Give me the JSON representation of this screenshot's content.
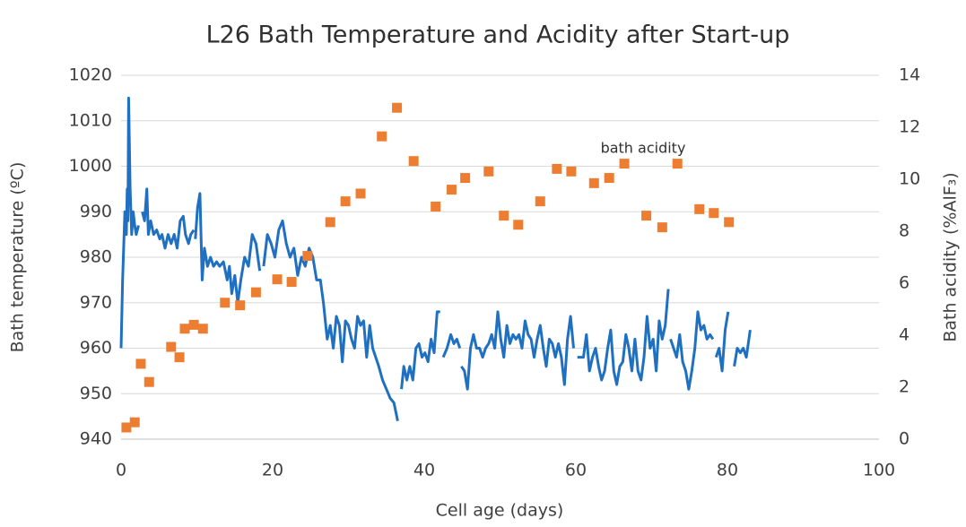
{
  "chart_data": {
    "type": "line",
    "title": "L26 Bath Temperature and Acidity after Start-up",
    "x_label": "Cell age (days)",
    "y_label": "Bath temperature (ºC)",
    "y2_label": "Bath acidity (%AlF₃)",
    "annotation": "bath acidity",
    "xlim": [
      0,
      100
    ],
    "xticks": [
      0,
      20,
      40,
      60,
      80,
      100
    ],
    "ylim": [
      940,
      1020
    ],
    "yticks": [
      940,
      950,
      960,
      970,
      980,
      990,
      1000,
      1010,
      1020
    ],
    "y2lim": [
      0,
      14
    ],
    "y2ticks": [
      0,
      2,
      4,
      6,
      8,
      10,
      12,
      14
    ],
    "grid": true,
    "series": [
      {
        "name": "bath temperature",
        "type": "line",
        "color": "#1f70c1",
        "x": [
          0,
          0.2,
          0.5,
          0.7,
          0.8,
          0.9,
          1.0,
          1.2,
          1.4,
          1.6,
          1.8,
          2.0,
          2.3,
          null,
          2.8,
          3.1,
          3.4,
          3.6,
          3.9,
          4.3,
          4.7,
          5.1,
          5.4,
          5.8,
          6.2,
          6.6,
          7.0,
          7.4,
          7.8,
          8.2,
          8.5,
          8.9,
          9.2,
          9.6,
          null,
          9.8,
          10.1,
          10.4,
          10.7,
          11.0,
          11.4,
          11.8,
          12.2,
          12.6,
          13.0,
          13.5,
          14.0,
          14.3,
          14.6,
          15.0,
          15.4,
          15.8,
          16.3,
          16.8,
          17.3,
          17.8,
          18.3,
          null,
          18.8,
          19.3,
          19.8,
          20.3,
          20.8,
          21.3,
          21.8,
          22.3,
          22.8,
          23.3,
          23.8,
          24.3,
          24.8,
          25.3,
          25.8,
          26.3,
          26.7,
          27.2,
          27.6,
          28.0,
          28.4,
          28.8,
          29.2,
          29.6,
          30.0,
          30.4,
          30.8,
          31.2,
          31.6,
          32.0,
          32.4,
          32.8,
          33.2,
          33.6,
          34.0,
          34.5,
          35.0,
          35.5,
          36.0,
          36.5,
          null,
          37.0,
          37.3,
          37.7,
          38.1,
          38.5,
          38.9,
          39.3,
          39.7,
          40.1,
          40.5,
          40.9,
          41.3,
          41.7,
          42.1,
          null,
          42.5,
          43.0,
          43.5,
          43.9,
          44.3,
          44.7,
          null,
          44.9,
          45.3,
          45.7,
          46.1,
          46.5,
          46.9,
          47.3,
          47.7,
          48.1,
          48.5,
          48.9,
          49.3,
          49.7,
          50.1,
          50.5,
          50.9,
          51.3,
          51.7,
          52.1,
          52.5,
          52.9,
          53.3,
          53.7,
          54.1,
          54.5,
          54.9,
          55.3,
          55.7,
          56.1,
          56.5,
          56.9,
          57.3,
          57.7,
          58.1,
          58.5,
          58.9,
          59.3,
          59.7,
          null,
          60.2,
          60.6,
          61.0,
          61.4,
          61.8,
          62.2,
          62.6,
          63.0,
          63.4,
          63.8,
          64.2,
          64.6,
          65.0,
          65.4,
          65.8,
          66.2,
          66.6,
          67.0,
          67.4,
          67.8,
          68.2,
          68.6,
          69.0,
          69.4,
          69.8,
          70.2,
          70.6,
          71.0,
          71.4,
          71.8,
          72.2,
          null,
          72.5,
          72.9,
          73.3,
          73.7,
          74.1,
          74.5,
          74.9,
          75.3,
          75.7,
          76.1,
          76.5,
          76.9,
          77.3,
          77.7,
          78.1,
          null,
          78.5,
          78.9,
          79.3,
          79.7,
          80.1,
          null,
          80.9,
          81.3,
          81.7,
          82.1,
          82.5,
          83.0
        ],
        "values": [
          960,
          975,
          990,
          985,
          995,
          988,
          1015,
          995,
          985,
          990,
          987,
          985,
          987,
          null,
          990,
          988,
          995,
          985,
          988,
          985,
          986,
          984,
          985,
          982,
          985,
          983,
          985,
          982,
          988,
          989,
          985,
          983,
          985,
          986,
          null,
          984,
          991,
          994,
          975,
          982,
          978,
          980,
          978,
          979,
          978,
          979,
          975,
          978,
          972,
          976,
          970,
          975,
          980,
          978,
          985,
          983,
          977,
          null,
          978,
          985,
          983,
          980,
          986,
          988,
          983,
          980,
          982,
          976,
          980,
          978,
          982,
          980,
          975,
          975,
          970,
          962,
          965,
          960,
          967,
          965,
          957,
          966,
          965,
          962,
          960,
          967,
          965,
          966,
          958,
          965,
          960,
          958,
          956,
          953,
          951,
          949,
          948,
          944,
          null,
          951,
          956,
          953,
          956,
          953,
          960,
          961,
          958,
          959,
          957,
          962,
          959,
          968,
          968,
          null,
          958,
          960,
          963,
          961,
          962,
          960,
          null,
          956,
          955,
          951,
          960,
          963,
          960,
          960,
          958,
          960,
          961,
          963,
          960,
          968,
          962,
          958,
          965,
          961,
          963,
          962,
          963,
          960,
          966,
          963,
          962,
          958,
          962,
          965,
          960,
          956,
          962,
          961,
          958,
          961,
          958,
          952,
          962,
          967,
          960,
          null,
          958,
          958,
          958,
          963,
          955,
          958,
          960,
          956,
          953,
          955,
          960,
          964,
          955,
          952,
          956,
          957,
          963,
          960,
          955,
          962,
          955,
          953,
          958,
          967,
          960,
          962,
          955,
          966,
          962,
          965,
          973,
          null,
          962,
          960,
          958,
          963,
          957,
          955,
          951,
          955,
          960,
          968,
          964,
          965,
          962,
          963,
          962,
          null,
          958,
          960,
          955,
          964,
          968,
          null,
          956,
          960,
          959,
          960,
          958,
          964
        ]
      },
      {
        "name": "bath acidity",
        "type": "scatter",
        "axis": "y2",
        "color": "#ed7d31",
        "x": [
          0.7,
          1.8,
          2.6,
          3.7,
          6.6,
          7.7,
          8.4,
          9.6,
          10.8,
          13.7,
          15.7,
          17.8,
          20.6,
          22.5,
          24.6,
          27.6,
          29.6,
          31.6,
          34.4,
          36.4,
          38.6,
          41.5,
          43.6,
          45.4,
          48.5,
          50.5,
          52.4,
          55.3,
          57.5,
          59.4,
          62.4,
          64.4,
          66.4,
          69.3,
          71.4,
          73.4,
          76.3,
          78.2,
          80.2
        ],
        "values": [
          0.45,
          0.65,
          2.9,
          2.2,
          3.55,
          3.15,
          4.25,
          4.4,
          4.25,
          5.25,
          5.15,
          5.65,
          6.15,
          6.05,
          7.05,
          8.35,
          9.15,
          9.45,
          11.65,
          12.75,
          10.7,
          8.95,
          9.6,
          10.05,
          10.3,
          8.6,
          8.25,
          9.15,
          10.4,
          10.3,
          9.85,
          10.05,
          10.6,
          8.6,
          8.15,
          10.6,
          8.85,
          8.7,
          8.35
        ]
      }
    ]
  }
}
